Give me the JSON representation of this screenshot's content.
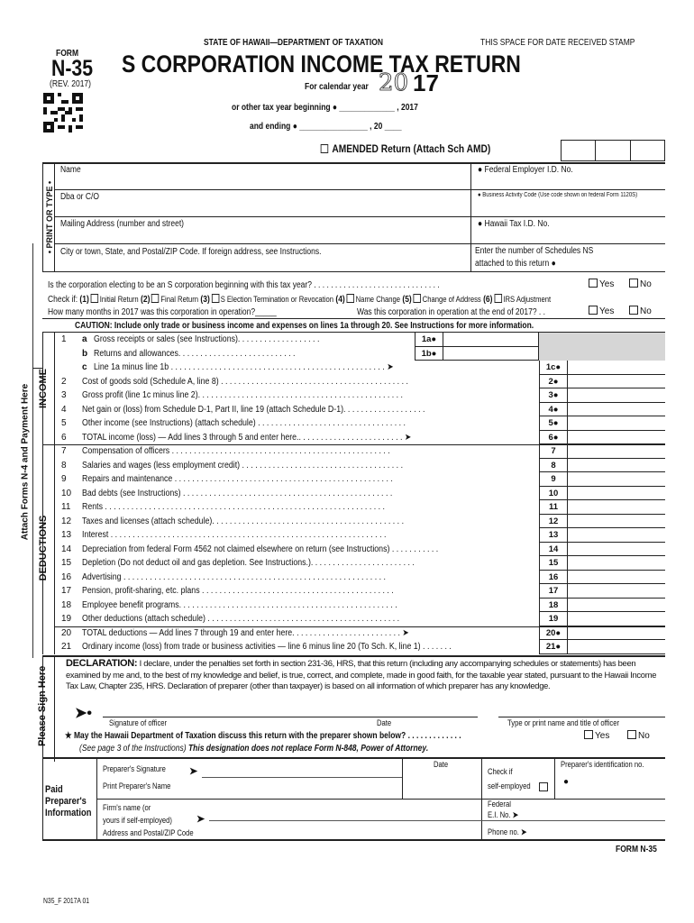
{
  "header": {
    "agency": "STATE OF HAWAII—DEPARTMENT OF TAXATION",
    "stamp_space": "THIS SPACE FOR DATE RECEIVED STAMP",
    "form_label": "FORM",
    "form_number": "N-35",
    "revision": "(REV. 2017)",
    "title": "S CORPORATION INCOME TAX RETURN",
    "calendar_year_label": "For calendar year",
    "year_outline": "20",
    "year_bold": "17",
    "other_year": "or other tax year  beginning ● _____________ , 2017",
    "ending": "and ending ● ________________ , 20 ____",
    "amended": "AMENDED Return (Attach Sch AMD)"
  },
  "entity": {
    "print_or_type": "• PRINT OR TYPE •",
    "name": "Name",
    "dba": "Dba or C/O",
    "mailing": "Mailing Address (number and street)",
    "city": "City or town, State, and Postal/ZIP Code.  If foreign address, see Instructions.",
    "fein": "●  Federal Employer I.D. No.",
    "bac": "●  Business Activity Code (Use code shown on federal Form 1120S)",
    "hi_tax_id": "●  Hawaii Tax I.D. No.",
    "schedules_ns_1": "Enter the number of Schedules NS",
    "schedules_ns_2": "attached to this return ●"
  },
  "questions": {
    "s_election": "Is the corporation electing to be an S corporation beginning with this tax year? . . . . . . . . . . . . . . . . . . . . . . . . . . . . . .",
    "yes": "Yes",
    "no": "No",
    "check_if": "Check if:",
    "checks": [
      "(1)",
      "Initial Return",
      "(2)",
      "Final Return",
      "(3)",
      "S Election Termination or Revocation",
      "(4)",
      "Name Change",
      "(5)",
      "Change of Address",
      "(6)",
      "IRS Adjustment"
    ],
    "months": "How many months in 2017 was this corporation in operation?_____",
    "in_operation": "Was this corporation in operation at the end of 2017? . ."
  },
  "caution": "CAUTION:  Include only trade or business income and expenses on lines 1a through 20.  See Instructions for more information.",
  "sections": {
    "income": "INCOME",
    "deductions": "DEDUCTIONS",
    "attach": "Attach Forms N-4 and Payment Here",
    "sign": "Please Sign Here"
  },
  "lines": [
    {
      "num": "1",
      "letter": "a",
      "text": "Gross receipts or sales (see Instructions). . . . . . . . . . . . . . . . . . .",
      "sub": "1a●"
    },
    {
      "num": "",
      "letter": "b",
      "text": "Returns and allowances. . . . . . . . . . . . . . . . . . . . . . . . . . .",
      "sub": "1b●"
    },
    {
      "num": "",
      "letter": "c",
      "text": "Line 1a minus line 1b . . . . . . . . . . . . . . . . . . . . . . . . . . . . . . . . . . . . . . . . . . . . . . . . . ➤",
      "box": "1c●"
    },
    {
      "num": "2",
      "text": "Cost of goods sold (Schedule A, line 8)  . . . . . . . . . . . . . . . . . . . . . . . . . . . . . . . . . . . . . . . . . . .",
      "box": "2●"
    },
    {
      "num": "3",
      "text": "Gross profit (line 1c minus line 2). . . . . . . . . . . . . . . . . . . . . . . . . . . . . . . . . . . . . . . . . . . . . . .",
      "box": "3●"
    },
    {
      "num": "4",
      "text": "Net gain or (loss) from Schedule D-1, Part II, line 19 (attach Schedule D-1). . . . . . . . . . . . . . . . . . .",
      "box": "4●"
    },
    {
      "num": "5",
      "text": "Other income (see Instructions) (attach schedule) . . . . . . . . . . . . . . . . . . . . . . . . . . . . . . . . . .",
      "box": "5●"
    },
    {
      "num": "6",
      "text": "     TOTAL income (loss) — Add lines 3 through 5 and enter here.. . . . . . . . . . . . . . . . . . . . . . . . ➤",
      "box": "6●"
    },
    {
      "num": "7",
      "text": "Compensation of officers . . . . . . . . . . . . . . . . . . . . . . . . . . . . . . . . . . . . . . . . . . . . . . . . . .",
      "box": "7"
    },
    {
      "num": "8",
      "text": "Salaries and wages (less employment credit)  . . . . . . . . . . . . . . . . . . . . . . . . . . . . . . . . . . . . .",
      "box": "8"
    },
    {
      "num": "9",
      "text": "Repairs and maintenance  . . . . . . . . . . . . . . . . . . . . . . . . . . . . . . . . . . . . . . . . . . . . . . . . . .",
      "box": "9"
    },
    {
      "num": "10",
      "text": "Bad debts (see Instructions)  . . . . . . . . . . . . . . . . . . . . . . . . . . . . . . . . . . . . . . . . . . . . . . . .",
      "box": "10"
    },
    {
      "num": "11",
      "text": "Rents  . . . . . . . . . . . . . . . . . . . . . . . . . . . . . . . . . . . . . . . . . . . . . . . . . . . . . . . . . . . . . . . .",
      "box": "11"
    },
    {
      "num": "12",
      "text": "Taxes and licenses (attach schedule). . . . . . . . . . . . . . . . . . . . . . . . . . . . . . . . . . . . . . . . . . . .",
      "box": "12"
    },
    {
      "num": "13",
      "text": "Interest . . . . . . . . . . . . . . . . . . . . . . . . . . . . . . . . . . . . . . . . . . . . . . . . . . . . . . . . . . . . . . .",
      "box": "13"
    },
    {
      "num": "14",
      "text": "Depreciation from federal Form 4562 not claimed elsewhere on return (see Instructions)  . . . . . . . . . . .",
      "box": "14"
    },
    {
      "num": "15",
      "text": "Depletion (Do not deduct oil and gas depletion.  See Instructions.). . . . . . . . . . . . . . . . . . . . . . . .",
      "box": "15"
    },
    {
      "num": "16",
      "text": "Advertising  . . . . . . . . . . . . . . . . . . . . . . . . . . . . . . . . . . . . . . . . . . . . . . . . . . . . . . . . . . . .",
      "box": "16"
    },
    {
      "num": "17",
      "text": "Pension, profit-sharing, etc. plans  . . . . . . . . . . . . . . . . . . . . . . . . . . . . . . . . . . . . . . . . . . . .",
      "box": "17"
    },
    {
      "num": "18",
      "text": "Employee benefit programs. . . . . . . . . . . . . . . . . . . . . . . . . . . . . . . . . . . . . . . . . . . . . . . . . .",
      "box": "18"
    },
    {
      "num": "19",
      "text": "Other deductions (attach schedule)  . . . . . . . . . . . . . . . . . . . . . . . . . . . . . . . . . . . . . . . . . . . .",
      "box": "19"
    },
    {
      "num": "20",
      "text": "     TOTAL deductions — Add lines 7 through 19 and enter here. . . . . . . . . . . . . . . . . . . . . . . . . ➤",
      "box": "20●"
    },
    {
      "num": "21",
      "text": "Ordinary income (loss) from trade or business activities — line 6 minus line 20 (To Sch. K, line 1) . . . . . . .",
      "box": "21●"
    }
  ],
  "declaration": {
    "heading": "DECLARATION:",
    "text": "I declare, under the penalties set forth in section 231-36, HRS, that this return (including any accompanying schedules or statements) has been examined by me and, to the best of my knowledge and belief, is true, correct, and complete, made in good faith, for the taxable year stated, pursuant to the Hawaii Income Tax Law, Chapter 235, HRS.  Declaration of preparer (other than taxpayer) is based on all information of which preparer has any knowledge.",
    "signature": "Signature of officer",
    "date": "Date",
    "print_name": "Type or print name and title of officer",
    "discuss": "★ May the Hawaii Department of Taxation discuss this return with the preparer shown below? . . . . . . . . . . . . .",
    "see_page": "(See page 3 of the Instructions)",
    "not_replace": "This designation does not replace Form N-848, Power of Attorney.",
    "yes": "Yes",
    "no": "No"
  },
  "preparer": {
    "section": "Paid Preparer's Information",
    "signature": "Preparer's Signature",
    "print_name": "Print Preparer's Name",
    "date": "Date",
    "check_if": "Check if",
    "self_employed": "self-employed",
    "id_no": "Preparer's identification no.",
    "firm1": "Firm's name (or",
    "firm2": "yours if self-employed)",
    "address": "Address and Postal/ZIP Code",
    "federal": "Federal",
    "ei_no": "E.I. No.",
    "phone": "Phone no."
  },
  "footer": {
    "form": "FORM N-35",
    "code": "N35_F 2017A 01"
  }
}
